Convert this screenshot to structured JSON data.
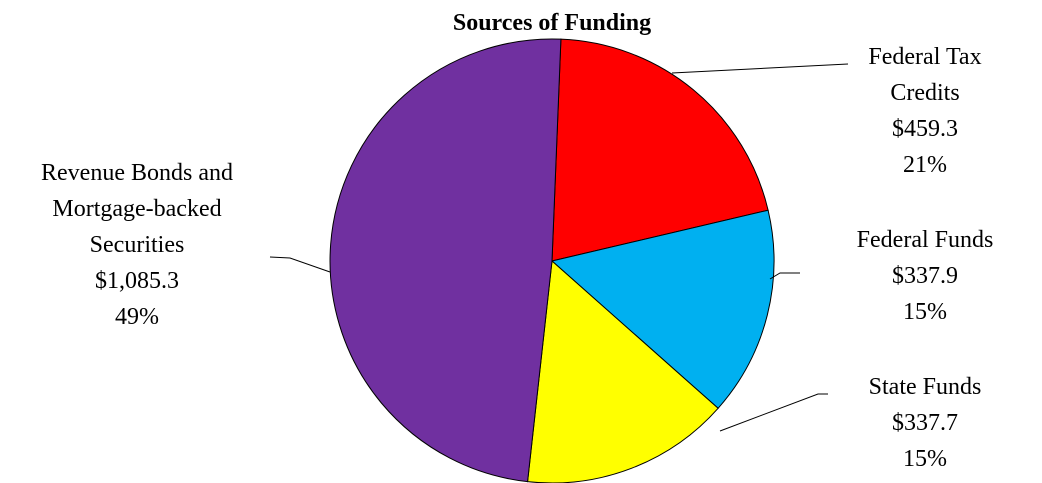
{
  "chart_data": {
    "type": "pie",
    "title": "Sources of Funding",
    "slices": [
      {
        "name": "Federal Tax Credits",
        "label_lines": [
          "Federal Tax",
          "Credits"
        ],
        "value_label": "$459.3",
        "percent_label": "21%",
        "value": 459.3,
        "color": "#ff0000"
      },
      {
        "name": "Federal Funds",
        "label_lines": [
          "Federal Funds"
        ],
        "value_label": "$337.9",
        "percent_label": "15%",
        "value": 337.9,
        "color": "#00b0f0"
      },
      {
        "name": "State Funds",
        "label_lines": [
          "State Funds"
        ],
        "value_label": "$337.7",
        "percent_label": "15%",
        "value": 337.7,
        "color": "#ffff00"
      },
      {
        "name": "Revenue Bonds and Mortgage-backed Securities",
        "label_lines": [
          "Revenue Bonds and",
          "Mortgage-backed",
          "Securities"
        ],
        "value_label": "$1,085.3",
        "percent_label": "49%",
        "value": 1085.3,
        "color": "#7030a0"
      }
    ]
  }
}
